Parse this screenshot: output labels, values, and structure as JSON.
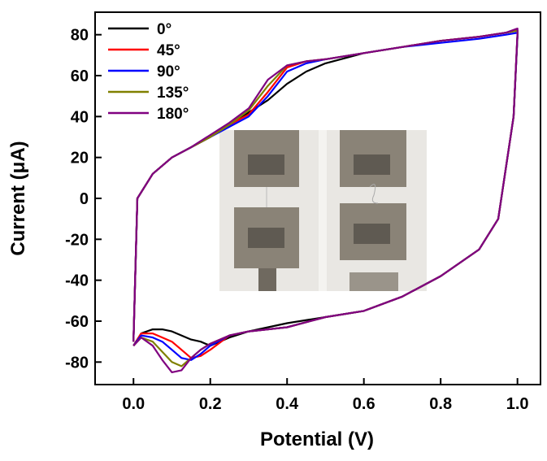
{
  "chart_data": {
    "type": "line",
    "x_label": "Potential (V)",
    "y_label": "Current (μA)",
    "x": [
      0,
      0.01,
      0.05,
      0.1,
      0.15,
      0.2,
      0.25,
      0.3,
      0.35,
      0.4,
      0.45,
      0.5,
      0.6,
      0.7,
      0.8,
      0.9,
      0.97,
      1.0,
      1.0,
      0.99,
      0.95,
      0.9,
      0.8,
      0.7,
      0.6,
      0.5,
      0.4,
      0.3,
      0.25,
      0.2,
      0.175,
      0.15,
      0.125,
      0.1,
      0.075,
      0.05,
      0.02,
      0.0
    ],
    "series": [
      {
        "name": "0°",
        "color": "#000000",
        "values": [
          -70,
          0,
          12,
          20,
          25,
          30,
          36,
          42,
          48,
          56,
          62,
          66,
          71,
          74,
          77,
          79,
          81,
          82,
          80,
          40,
          -10,
          -25,
          -38,
          -48,
          -55,
          -58,
          -61,
          -65,
          -68,
          -72,
          -70,
          -69,
          -67,
          -65,
          -64,
          -64,
          -66,
          -72
        ]
      },
      {
        "name": "45°",
        "color": "#ff0000",
        "values": [
          -70,
          0,
          12,
          20,
          25,
          30,
          36,
          41,
          52,
          64,
          67,
          68,
          71,
          74,
          77,
          79,
          81,
          82,
          80,
          40,
          -10,
          -25,
          -38,
          -48,
          -55,
          -58,
          -63,
          -65,
          -67,
          -74,
          -77,
          -78,
          -74,
          -70,
          -68,
          -66,
          -66,
          -72
        ]
      },
      {
        "name": "90°",
        "color": "#0000ff",
        "values": [
          -70,
          0,
          12,
          20,
          25,
          30,
          35,
          40,
          50,
          62,
          66,
          68,
          71,
          74,
          76,
          78,
          80,
          81,
          79,
          40,
          -10,
          -25,
          -38,
          -48,
          -55,
          -58,
          -63,
          -65,
          -67,
          -72,
          -76,
          -79,
          -78,
          -74,
          -70,
          -68,
          -67,
          -72
        ]
      },
      {
        "name": "135°",
        "color": "#808000",
        "values": [
          -70,
          0,
          12,
          20,
          25,
          30,
          36,
          43,
          55,
          65,
          67,
          68,
          71,
          74,
          77,
          79,
          81,
          82,
          80,
          40,
          -10,
          -25,
          -38,
          -48,
          -55,
          -58,
          -63,
          -65,
          -67,
          -71,
          -74,
          -78,
          -82,
          -80,
          -75,
          -70,
          -68,
          -72
        ]
      },
      {
        "name": "180°",
        "color": "#800080",
        "values": [
          -70,
          0,
          12,
          20,
          25,
          31,
          37,
          44,
          58,
          65,
          67,
          68,
          71,
          74,
          77,
          79,
          81,
          83,
          81,
          40,
          -10,
          -25,
          -38,
          -48,
          -55,
          -58,
          -63,
          -65,
          -67,
          -71,
          -74,
          -78,
          -84,
          -85,
          -79,
          -72,
          -68,
          -72
        ]
      }
    ],
    "xlim": [
      -0.1,
      1.06
    ],
    "ylim": [
      -91,
      91
    ],
    "xticks": [
      {
        "value": 0,
        "label": "0.0"
      },
      {
        "value": 0.2,
        "label": "0.2"
      },
      {
        "value": 0.4,
        "label": "0.4"
      },
      {
        "value": 0.6,
        "label": "0.6"
      },
      {
        "value": 0.8,
        "label": "0.8"
      },
      {
        "value": 1,
        "label": "1.0"
      }
    ],
    "yticks": [
      -80,
      -60,
      -40,
      -20,
      0,
      20,
      40,
      60,
      80
    ],
    "legend": "upper-left"
  }
}
